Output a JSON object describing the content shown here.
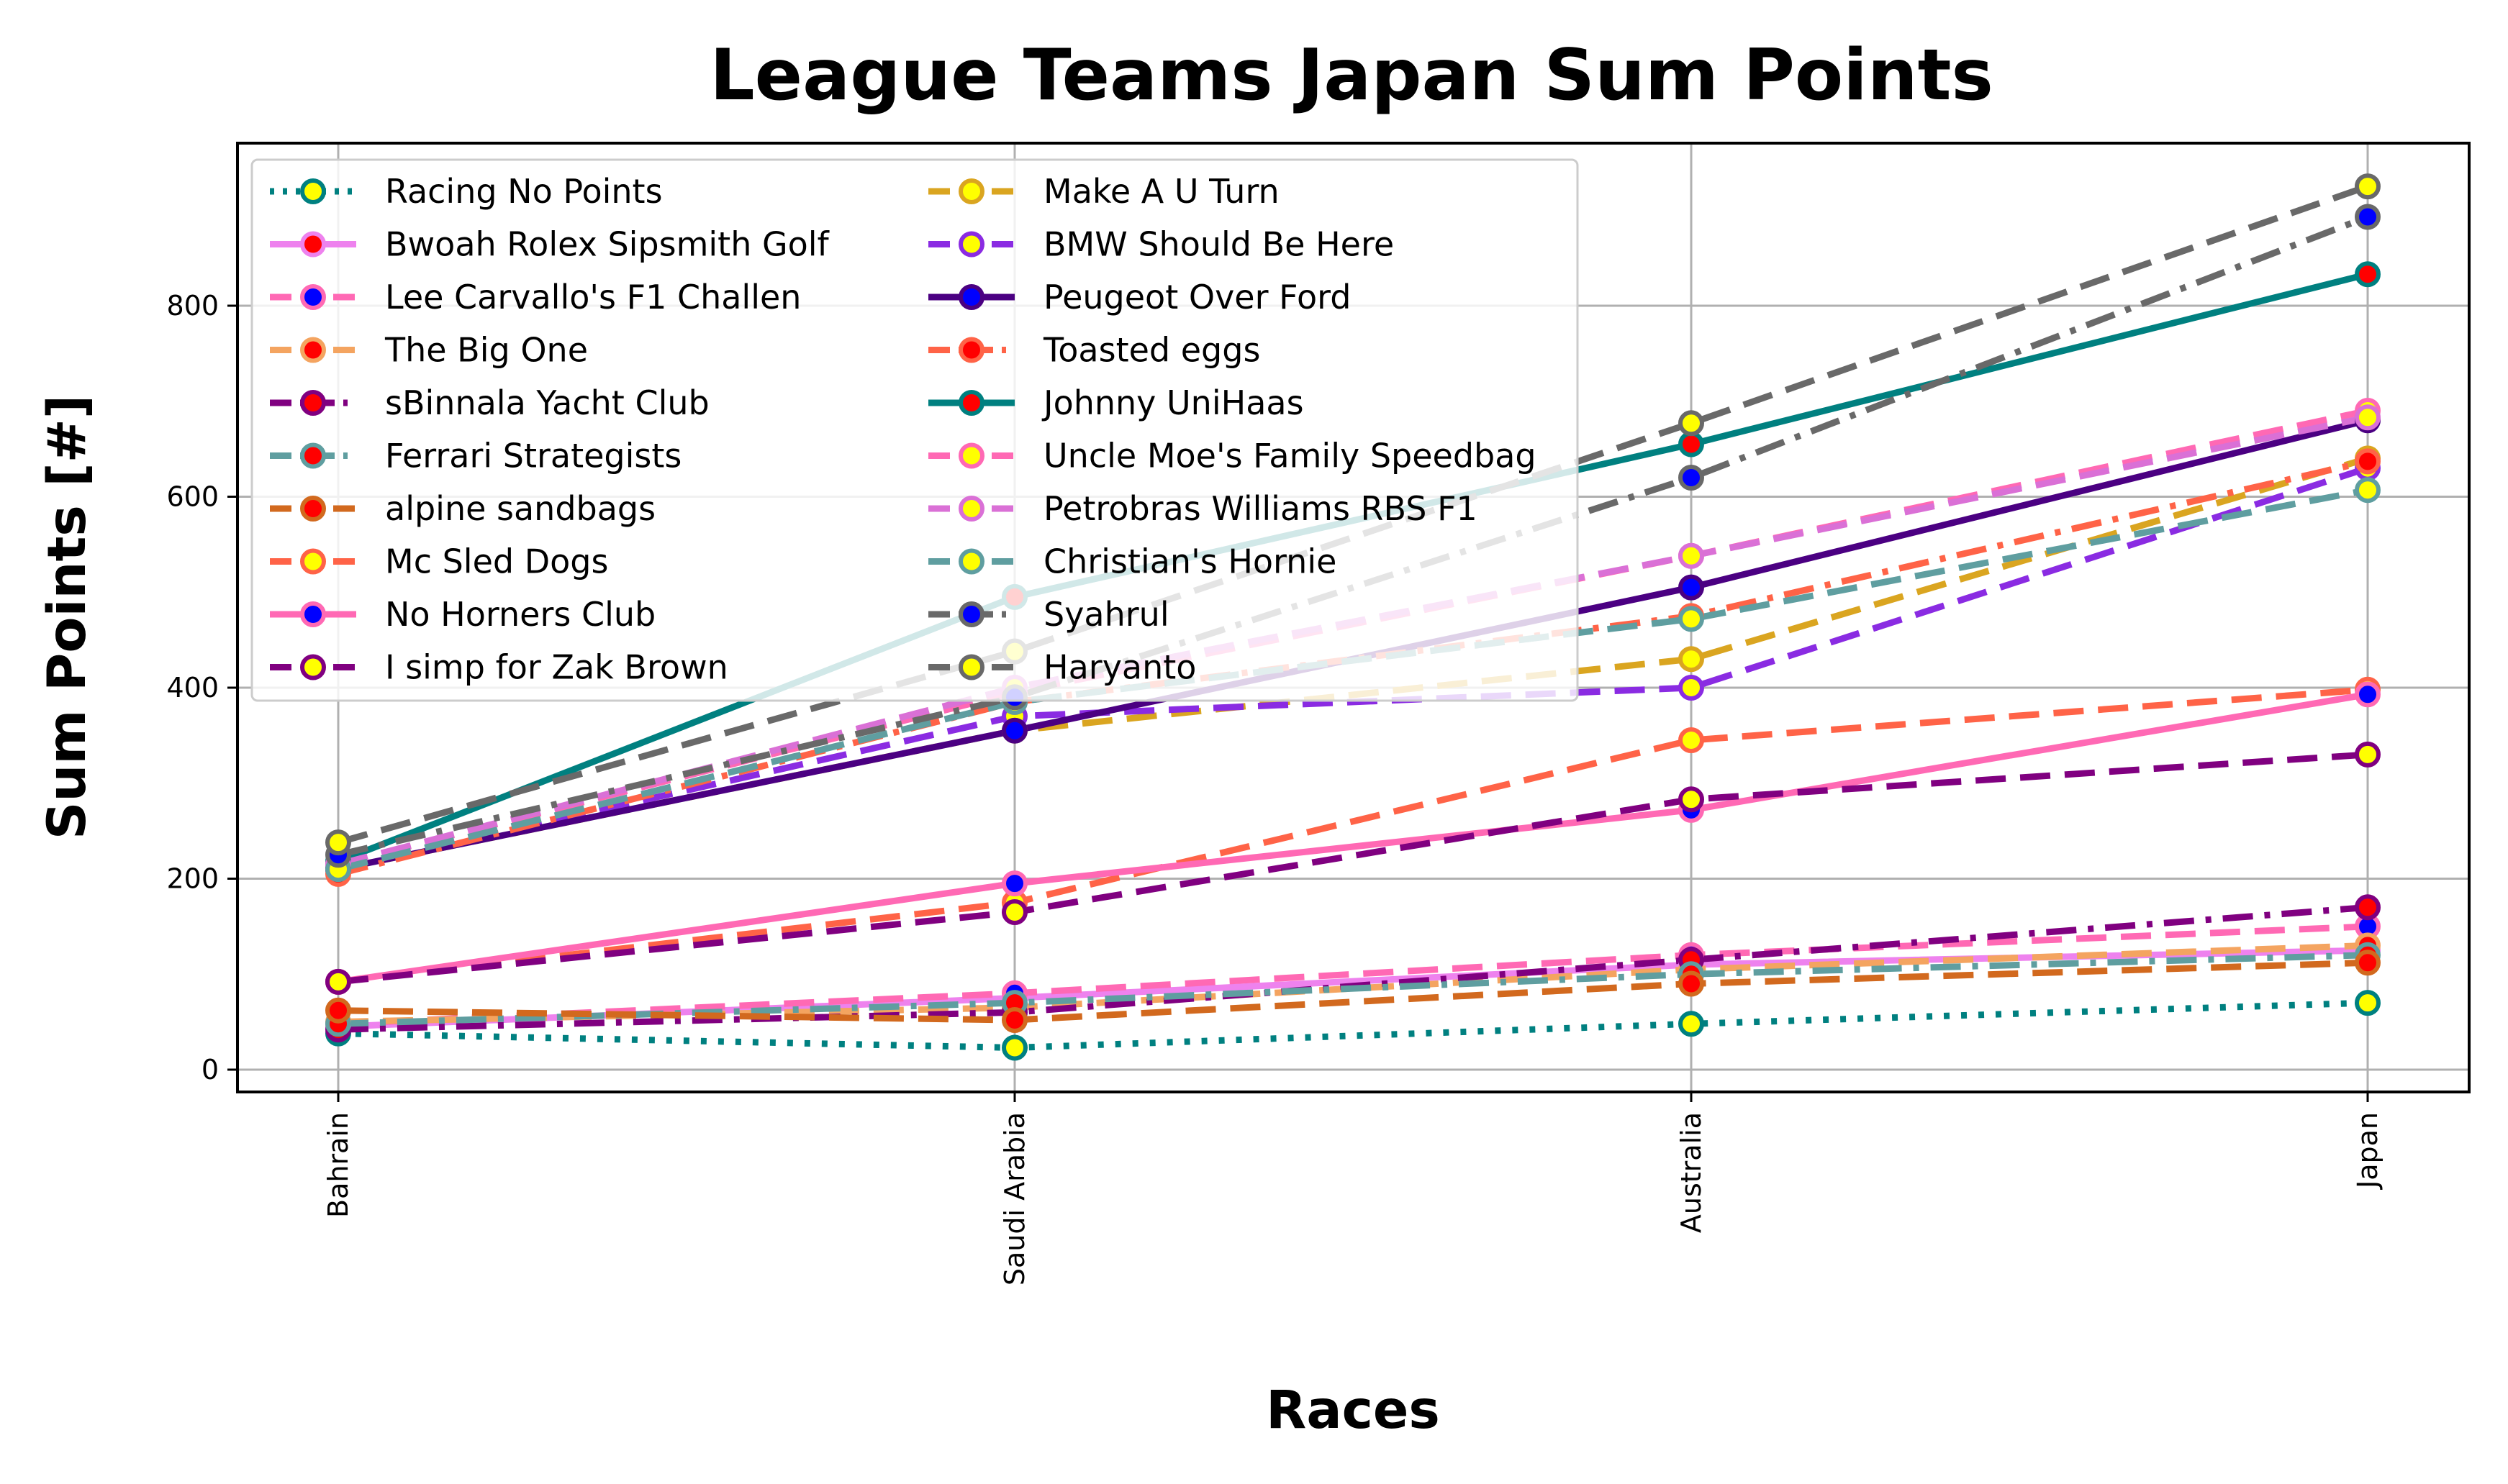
{
  "chart_data": {
    "type": "line",
    "title": "League Teams Japan Sum Points",
    "xlabel": "Races",
    "ylabel": "Sum Points [#]",
    "categories": [
      "Bahrain",
      "Saudi Arabia",
      "Australia",
      "Japan"
    ],
    "yticks": [
      0,
      200,
      400,
      600,
      800
    ],
    "ylim": [
      -20,
      965
    ],
    "grid": true,
    "legend_location": "upper-left",
    "legend_columns": 2,
    "series": [
      {
        "name": "Racing No Points",
        "values": [
          38,
          23,
          48,
          70
        ],
        "color": "#008080",
        "marker_face": "#ffff00",
        "dash": "dotted"
      },
      {
        "name": "Bwoah Rolex Sipsmith Golf",
        "values": [
          45,
          75,
          110,
          125
        ],
        "color": "#ee82ee",
        "marker_face": "#ff0000",
        "dash": "solid"
      },
      {
        "name": "Lee Carvallo's F1 Challen",
        "values": [
          48,
          80,
          120,
          150
        ],
        "color": "#ff69b4",
        "marker_face": "#0000ff",
        "dash": "dashed"
      },
      {
        "name": "The Big One",
        "values": [
          50,
          65,
          105,
          130
        ],
        "color": "#f4a460",
        "marker_face": "#ff0000",
        "dash": "dashed"
      },
      {
        "name": "sBinnala Yacht Club",
        "values": [
          42,
          60,
          115,
          170
        ],
        "color": "#800080",
        "marker_face": "#ff0000",
        "dash": "dashdot"
      },
      {
        "name": "Ferrari Strategists",
        "values": [
          48,
          70,
          100,
          120
        ],
        "color": "#5f9ea0",
        "marker_face": "#ff0000",
        "dash": "dashdot"
      },
      {
        "name": "alpine sandbags",
        "values": [
          62,
          52,
          90,
          112
        ],
        "color": "#d2691e",
        "marker_face": "#ff0000",
        "dash": "dashed"
      },
      {
        "name": "Mc Sled Dogs",
        "values": [
          92,
          175,
          345,
          398
        ],
        "color": "#ff6347",
        "marker_face": "#ffff00",
        "dash": "dashed"
      },
      {
        "name": "No Horners Club",
        "values": [
          92,
          195,
          272,
          393
        ],
        "color": "#ff69b4",
        "marker_face": "#0000ff",
        "dash": "solid"
      },
      {
        "name": "I simp for Zak Brown",
        "values": [
          92,
          165,
          283,
          330
        ],
        "color": "#800080",
        "marker_face": "#ffff00",
        "dash": "dashed"
      },
      {
        "name": "Make A U Turn",
        "values": [
          210,
          355,
          430,
          640
        ],
        "color": "#daa520",
        "marker_face": "#ffff00",
        "dash": "dashed"
      },
      {
        "name": "BMW Should Be Here",
        "values": [
          210,
          370,
          400,
          630
        ],
        "color": "#8a2be2",
        "marker_face": "#ffff00",
        "dash": "dashed"
      },
      {
        "name": "Peugeot Over Ford",
        "values": [
          210,
          355,
          505,
          680
        ],
        "color": "#4b0082",
        "marker_face": "#0000ff",
        "dash": "solid"
      },
      {
        "name": "Toasted eggs",
        "values": [
          205,
          385,
          475,
          637
        ],
        "color": "#ff6347",
        "marker_face": "#ff0000",
        "dash": "dashdot"
      },
      {
        "name": "Johnny UniHaas",
        "values": [
          218,
          495,
          655,
          833
        ],
        "color": "#008080",
        "marker_face": "#ff0000",
        "dash": "solid"
      },
      {
        "name": "Uncle Moe's Family Speedbag",
        "values": [
          215,
          395,
          538,
          690
        ],
        "color": "#ff69b4",
        "marker_face": "#ffff00",
        "dash": "dashed"
      },
      {
        "name": "Petrobras Williams RBS F1",
        "values": [
          215,
          400,
          538,
          683
        ],
        "color": "#da70d6",
        "marker_face": "#ffff00",
        "dash": "dashed"
      },
      {
        "name": "Christian's Hornie",
        "values": [
          210,
          385,
          472,
          607
        ],
        "color": "#5f9ea0",
        "marker_face": "#ffff00",
        "dash": "dashed"
      },
      {
        "name": "Syahrul",
        "values": [
          225,
          390,
          620,
          893
        ],
        "color": "#696969",
        "marker_face": "#0000ff",
        "dash": "dashdot"
      },
      {
        "name": "Haryanto",
        "values": [
          238,
          438,
          677,
          925
        ],
        "color": "#696969",
        "marker_face": "#ffff00",
        "dash": "dashed"
      }
    ]
  }
}
